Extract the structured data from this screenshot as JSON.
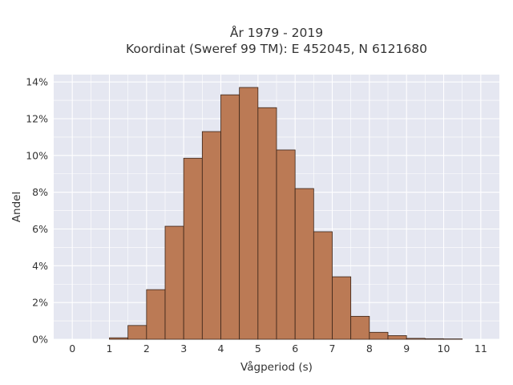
{
  "chart_data": {
    "type": "bar",
    "title": [
      "År 1979 - 2019",
      "Koordinat (Sweref 99 TM): E 452045, N 6121680"
    ],
    "xlabel": "Vågperiod (s)",
    "ylabel": "Andel",
    "xlim": [
      -0.5,
      11.5
    ],
    "ylim": [
      0,
      14.4
    ],
    "xticks": [
      0,
      1,
      2,
      3,
      4,
      5,
      6,
      7,
      8,
      9,
      10,
      11
    ],
    "yticks": [
      0,
      2,
      4,
      6,
      8,
      10,
      12,
      14
    ],
    "ytick_suffix": "%",
    "bin_width": 0.5,
    "bins": [
      {
        "x0": 1.0,
        "value": 0.08
      },
      {
        "x0": 1.5,
        "value": 0.75
      },
      {
        "x0": 2.0,
        "value": 2.7
      },
      {
        "x0": 2.5,
        "value": 6.15
      },
      {
        "x0": 3.0,
        "value": 9.85
      },
      {
        "x0": 3.5,
        "value": 11.3
      },
      {
        "x0": 4.0,
        "value": 13.3
      },
      {
        "x0": 4.5,
        "value": 13.7
      },
      {
        "x0": 5.0,
        "value": 12.6
      },
      {
        "x0": 5.5,
        "value": 10.3
      },
      {
        "x0": 6.0,
        "value": 8.2
      },
      {
        "x0": 6.5,
        "value": 5.85
      },
      {
        "x0": 7.0,
        "value": 3.4
      },
      {
        "x0": 7.5,
        "value": 1.25
      },
      {
        "x0": 8.0,
        "value": 0.38
      },
      {
        "x0": 8.5,
        "value": 0.2
      },
      {
        "x0": 9.0,
        "value": 0.05
      },
      {
        "x0": 9.5,
        "value": 0.03
      },
      {
        "x0": 10.0,
        "value": 0.02
      }
    ],
    "grid": true,
    "colors": {
      "bar_fill": "#bb7a55",
      "bar_stroke": "#3a2418",
      "plot_background": "#e5e7f1",
      "grid": "#ffffff"
    }
  }
}
